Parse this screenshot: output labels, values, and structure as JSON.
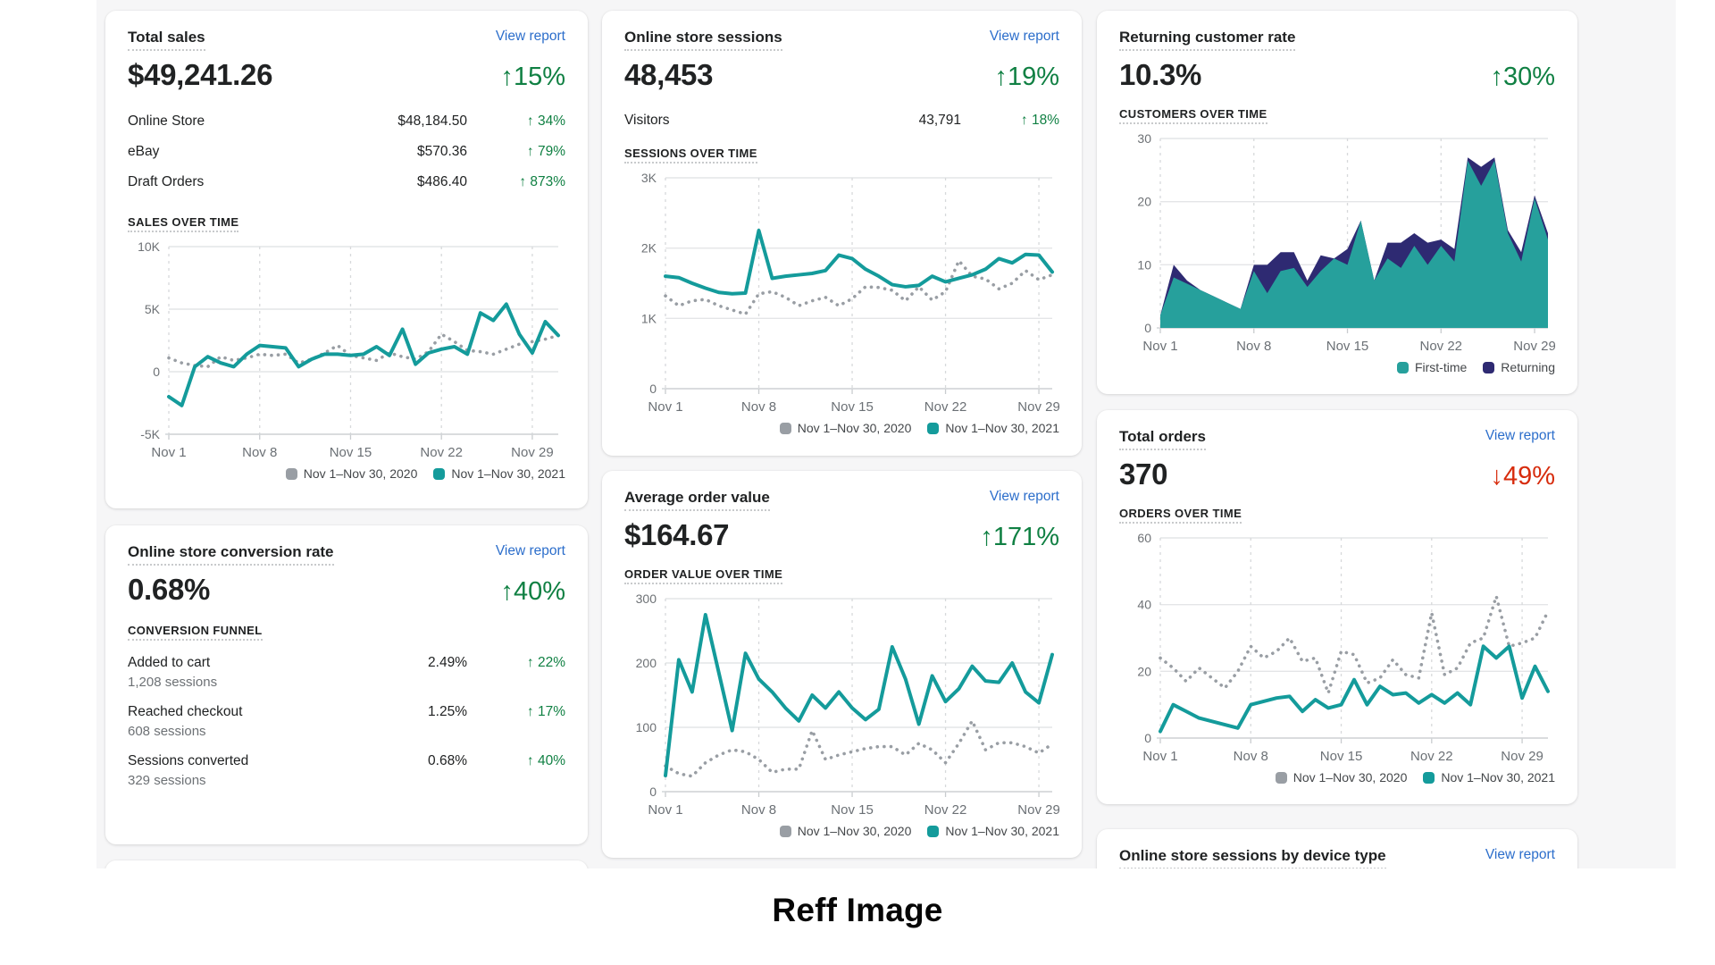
{
  "page": {
    "background": "#f6f6f7",
    "caption": "Reff Image"
  },
  "colors": {
    "link_blue": "#2C6ECB",
    "positive_green": "#108043",
    "negative_red": "#D72C0D",
    "series_teal": "#149B9B",
    "series_gray": "#999EA4",
    "area_first_time_teal": "#26A09C",
    "area_returning_navy": "#2E2A72",
    "text": "#202223",
    "muted_text": "#6D7175"
  },
  "cards": {
    "total_sales": {
      "title": "Total sales",
      "view_report": "View report",
      "value": "$49,241.26",
      "delta": "↑15%",
      "rows": [
        {
          "label": "Online Store",
          "value": "$48,184.50",
          "delta": "↑ 34%"
        },
        {
          "label": "eBay",
          "value": "$570.36",
          "delta": "↑ 79%"
        },
        {
          "label": "Draft Orders",
          "value": "$486.40",
          "delta": "↑ 873%"
        }
      ],
      "section_label": "SALES OVER TIME"
    },
    "conversion": {
      "title": "Online store conversion rate",
      "view_report": "View report",
      "value": "0.68%",
      "delta": "↑40%",
      "section_label": "CONVERSION FUNNEL",
      "funnel": [
        {
          "label": "Added to cart",
          "sub": "1,208 sessions",
          "value": "2.49%",
          "delta": "↑ 22%"
        },
        {
          "label": "Reached checkout",
          "sub": "608 sessions",
          "value": "1.25%",
          "delta": "↑ 17%"
        },
        {
          "label": "Sessions converted",
          "sub": "329 sessions",
          "value": "0.68%",
          "delta": "↑ 40%"
        }
      ]
    },
    "sessions": {
      "title": "Online store sessions",
      "view_report": "View report",
      "value": "48,453",
      "delta": "↑19%",
      "rows": [
        {
          "label": "Visitors",
          "value": "43,791",
          "delta": "↑ 18%"
        }
      ],
      "section_label": "SESSIONS OVER TIME"
    },
    "aov": {
      "title": "Average order value",
      "view_report": "View report",
      "value": "$164.67",
      "delta": "↑171%",
      "section_label": "ORDER VALUE OVER TIME"
    },
    "returning": {
      "title": "Returning customer rate",
      "value": "10.3%",
      "delta": "↑30%",
      "section_label": "CUSTOMERS OVER TIME"
    },
    "orders": {
      "title": "Total orders",
      "view_report": "View report",
      "value": "370",
      "delta": "↓49%",
      "section_label": "ORDERS OVER TIME"
    },
    "device": {
      "title": "Online store sessions by device type",
      "view_report": "View report"
    }
  },
  "chart_data": [
    {
      "id": "sales_over_time",
      "type": "line",
      "title": "SALES OVER TIME",
      "ylim": [
        -5000,
        10000
      ],
      "yticks": [
        {
          "v": 10000,
          "label": "10K"
        },
        {
          "v": 5000,
          "label": "5K"
        },
        {
          "v": 0,
          "label": "0"
        },
        {
          "v": -5000,
          "label": "-5K"
        }
      ],
      "x_tick_labels": [
        "Nov 1",
        "Nov 8",
        "Nov 15",
        "Nov 22",
        "Nov 29"
      ],
      "x_tick_positions": [
        0,
        7,
        14,
        21,
        28
      ],
      "series": [
        {
          "name": "Nov 1–Nov 30, 2020",
          "style": "dotted",
          "color": "#999EA4",
          "values": [
            1100,
            700,
            500,
            400,
            1200,
            900,
            1100,
            1400,
            1300,
            1400,
            700,
            1000,
            1500,
            2100,
            1300,
            1100,
            900,
            1500,
            1200,
            1000,
            1600,
            3000,
            2400,
            1700,
            1600,
            1400,
            1800,
            2200,
            2400,
            2600,
            2900
          ]
        },
        {
          "name": "Nov 1–Nov 30, 2021",
          "style": "solid",
          "color": "#149B9B",
          "values": [
            -2000,
            -2700,
            400,
            1200,
            700,
            400,
            1400,
            2100,
            2000,
            1900,
            400,
            1000,
            1400,
            1400,
            1300,
            1400,
            2000,
            1300,
            3400,
            600,
            1500,
            1800,
            2000,
            1400,
            4700,
            4100,
            5400,
            3000,
            1500,
            4000,
            2900
          ]
        }
      ]
    },
    {
      "id": "sessions_over_time",
      "type": "line",
      "title": "SESSIONS OVER TIME",
      "ylim": [
        0,
        3000
      ],
      "yticks": [
        {
          "v": 3000,
          "label": "3K"
        },
        {
          "v": 2000,
          "label": "2K"
        },
        {
          "v": 1000,
          "label": "1K"
        },
        {
          "v": 0,
          "label": "0"
        }
      ],
      "x_tick_labels": [
        "Nov 1",
        "Nov 8",
        "Nov 15",
        "Nov 22",
        "Nov 29"
      ],
      "x_tick_positions": [
        0,
        7,
        14,
        21,
        28
      ],
      "series": [
        {
          "name": "Nov 1–Nov 30, 2020",
          "style": "dotted",
          "color": "#999EA4",
          "values": [
            1320,
            1180,
            1250,
            1270,
            1180,
            1120,
            1060,
            1350,
            1380,
            1300,
            1180,
            1250,
            1300,
            1180,
            1280,
            1450,
            1440,
            1400,
            1250,
            1450,
            1260,
            1380,
            1820,
            1600,
            1560,
            1420,
            1500,
            1680,
            1550,
            1620
          ]
        },
        {
          "name": "Nov 1–Nov 30, 2021",
          "style": "solid",
          "color": "#149B9B",
          "values": [
            1600,
            1580,
            1500,
            1430,
            1370,
            1350,
            1360,
            2250,
            1570,
            1600,
            1620,
            1640,
            1680,
            1900,
            1850,
            1700,
            1600,
            1480,
            1450,
            1470,
            1600,
            1520,
            1570,
            1620,
            1700,
            1850,
            1790,
            1910,
            1900,
            1660
          ]
        }
      ]
    },
    {
      "id": "order_value_over_time",
      "type": "line",
      "title": "ORDER VALUE OVER TIME",
      "ylim": [
        0,
        300
      ],
      "yticks": [
        {
          "v": 300,
          "label": "300"
        },
        {
          "v": 200,
          "label": "200"
        },
        {
          "v": 100,
          "label": "100"
        },
        {
          "v": 0,
          "label": "0"
        }
      ],
      "x_tick_labels": [
        "Nov 1",
        "Nov 8",
        "Nov 15",
        "Nov 22",
        "Nov 29"
      ],
      "x_tick_positions": [
        0,
        7,
        14,
        21,
        28
      ],
      "series": [
        {
          "name": "Nov 1–Nov 30, 2020",
          "style": "dotted",
          "color": "#999EA4",
          "values": [
            40,
            28,
            24,
            45,
            57,
            65,
            62,
            50,
            30,
            35,
            35,
            95,
            50,
            57,
            62,
            67,
            70,
            70,
            57,
            75,
            65,
            45,
            75,
            110,
            65,
            76,
            76,
            70,
            60,
            74
          ]
        },
        {
          "name": "Nov 1–Nov 30, 2021",
          "style": "solid",
          "color": "#149B9B",
          "values": [
            25,
            205,
            155,
            275,
            185,
            95,
            215,
            175,
            155,
            130,
            110,
            150,
            130,
            155,
            130,
            112,
            128,
            225,
            175,
            105,
            180,
            140,
            160,
            195,
            172,
            170,
            200,
            155,
            138,
            213
          ]
        }
      ]
    },
    {
      "id": "customers_over_time",
      "type": "stacked_area",
      "title": "CUSTOMERS OVER TIME",
      "ylim": [
        0,
        30
      ],
      "yticks": [
        {
          "v": 30,
          "label": "30"
        },
        {
          "v": 20,
          "label": "20"
        },
        {
          "v": 10,
          "label": "10"
        },
        {
          "v": 0,
          "label": "0"
        }
      ],
      "x_tick_labels": [
        "Nov 1",
        "Nov 8",
        "Nov 15",
        "Nov 22",
        "Nov 29"
      ],
      "x_tick_positions": [
        0,
        7,
        14,
        21,
        28
      ],
      "series": [
        {
          "name": "First-time",
          "style": "area",
          "color": "#26A09C",
          "values": [
            2,
            8,
            7,
            6,
            5,
            4,
            3,
            9,
            5.5,
            9,
            9.5,
            6.5,
            9,
            11,
            10,
            17,
            7.5,
            11,
            9.5,
            13,
            10,
            13,
            10.5,
            26.5,
            22.5,
            26.5,
            15,
            10.5,
            20.5,
            14
          ]
        },
        {
          "name": "Returning",
          "style": "area",
          "color": "#2E2A72",
          "values": [
            0,
            2,
            0.5,
            0,
            0,
            0,
            0,
            1,
            4.5,
            3,
            2.5,
            1,
            2.5,
            0,
            2.5,
            0,
            0,
            2.5,
            4,
            2,
            3.5,
            1,
            2,
            0.5,
            3,
            0.5,
            0.5,
            1.5,
            0.5,
            1
          ]
        }
      ]
    },
    {
      "id": "orders_over_time",
      "type": "line",
      "title": "ORDERS OVER TIME",
      "ylim": [
        0,
        60
      ],
      "yticks": [
        {
          "v": 60,
          "label": "60"
        },
        {
          "v": 40,
          "label": "40"
        },
        {
          "v": 20,
          "label": "20"
        },
        {
          "v": 0,
          "label": "0"
        }
      ],
      "x_tick_labels": [
        "Nov 1",
        "Nov 8",
        "Nov 15",
        "Nov 22",
        "Nov 29"
      ],
      "x_tick_positions": [
        0,
        7,
        14,
        21,
        28
      ],
      "series": [
        {
          "name": "Nov 1–Nov 30, 2020",
          "style": "dotted",
          "color": "#999EA4",
          "values": [
            24,
            21,
            17,
            21,
            18,
            15,
            20,
            27.5,
            24,
            26,
            30,
            23,
            24,
            13.5,
            26,
            25,
            16.5,
            18,
            23.5,
            19,
            18,
            37.5,
            19,
            21,
            28.5,
            30,
            42.5,
            27.5,
            28.5,
            30,
            38
          ]
        },
        {
          "name": "Nov 1–Nov 30, 2021",
          "style": "solid",
          "color": "#149B9B",
          "values": [
            2,
            10,
            8,
            6,
            5,
            4,
            3,
            10,
            11,
            12,
            12.5,
            8,
            11.5,
            9,
            10,
            17.5,
            10,
            15.5,
            13,
            13.5,
            10.5,
            13,
            10.5,
            13.5,
            10,
            27.5,
            24,
            27.5,
            12,
            21.5,
            14
          ]
        }
      ]
    }
  ]
}
